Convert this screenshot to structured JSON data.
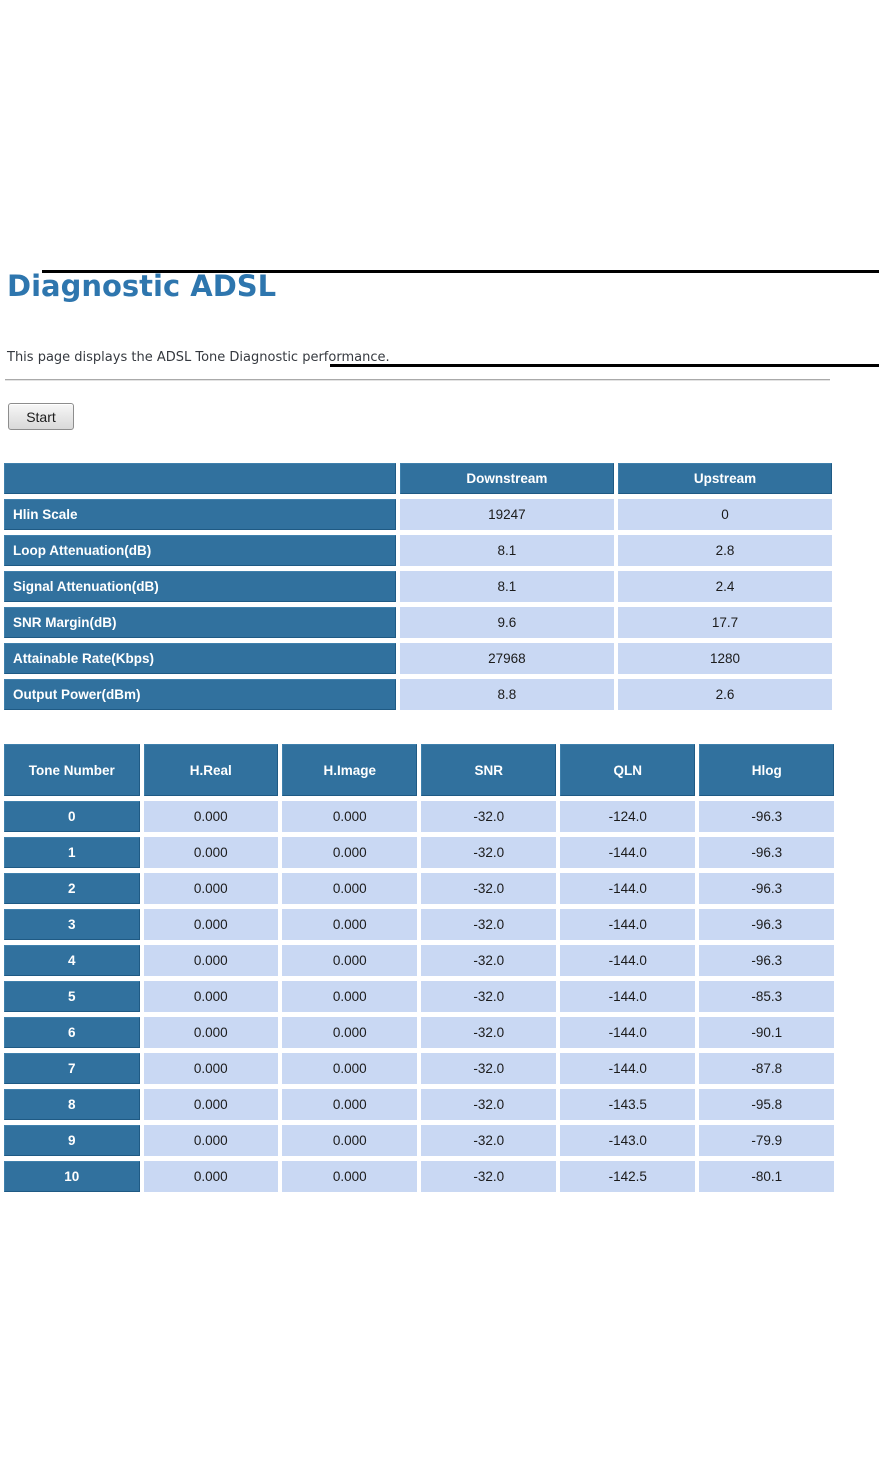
{
  "page": {
    "title": "Diagnostic ADSL",
    "description": "This page displays the ADSL Tone Diagnostic performance.",
    "start_button": "Start"
  },
  "summary_table": {
    "headers": [
      "",
      "Downstream",
      "Upstream"
    ],
    "rows": [
      {
        "label": "Hlin Scale",
        "downstream": "19247",
        "upstream": "0"
      },
      {
        "label": "Loop Attenuation(dB)",
        "downstream": "8.1",
        "upstream": "2.8"
      },
      {
        "label": "Signal Attenuation(dB)",
        "downstream": "8.1",
        "upstream": "2.4"
      },
      {
        "label": "SNR Margin(dB)",
        "downstream": "9.6",
        "upstream": "17.7"
      },
      {
        "label": "Attainable Rate(Kbps)",
        "downstream": "27968",
        "upstream": "1280"
      },
      {
        "label": "Output Power(dBm)",
        "downstream": "8.8",
        "upstream": "2.6"
      }
    ]
  },
  "tone_table": {
    "headers": [
      "Tone Number",
      "H.Real",
      "H.Image",
      "SNR",
      "QLN",
      "Hlog"
    ],
    "rows": [
      [
        "0",
        "0.000",
        "0.000",
        "-32.0",
        "-124.0",
        "-96.3"
      ],
      [
        "1",
        "0.000",
        "0.000",
        "-32.0",
        "-144.0",
        "-96.3"
      ],
      [
        "2",
        "0.000",
        "0.000",
        "-32.0",
        "-144.0",
        "-96.3"
      ],
      [
        "3",
        "0.000",
        "0.000",
        "-32.0",
        "-144.0",
        "-96.3"
      ],
      [
        "4",
        "0.000",
        "0.000",
        "-32.0",
        "-144.0",
        "-96.3"
      ],
      [
        "5",
        "0.000",
        "0.000",
        "-32.0",
        "-144.0",
        "-85.3"
      ],
      [
        "6",
        "0.000",
        "0.000",
        "-32.0",
        "-144.0",
        "-90.1"
      ],
      [
        "7",
        "0.000",
        "0.000",
        "-32.0",
        "-144.0",
        "-87.8"
      ],
      [
        "8",
        "0.000",
        "0.000",
        "-32.0",
        "-143.5",
        "-95.8"
      ],
      [
        "9",
        "0.000",
        "0.000",
        "-32.0",
        "-143.0",
        "-79.9"
      ],
      [
        "10",
        "0.000",
        "0.000",
        "-32.0",
        "-142.5",
        "-80.1"
      ]
    ]
  },
  "colors": {
    "header_bg": "#31719E",
    "cell_bg": "#C9D8F3",
    "heading": "#2E76AE"
  }
}
